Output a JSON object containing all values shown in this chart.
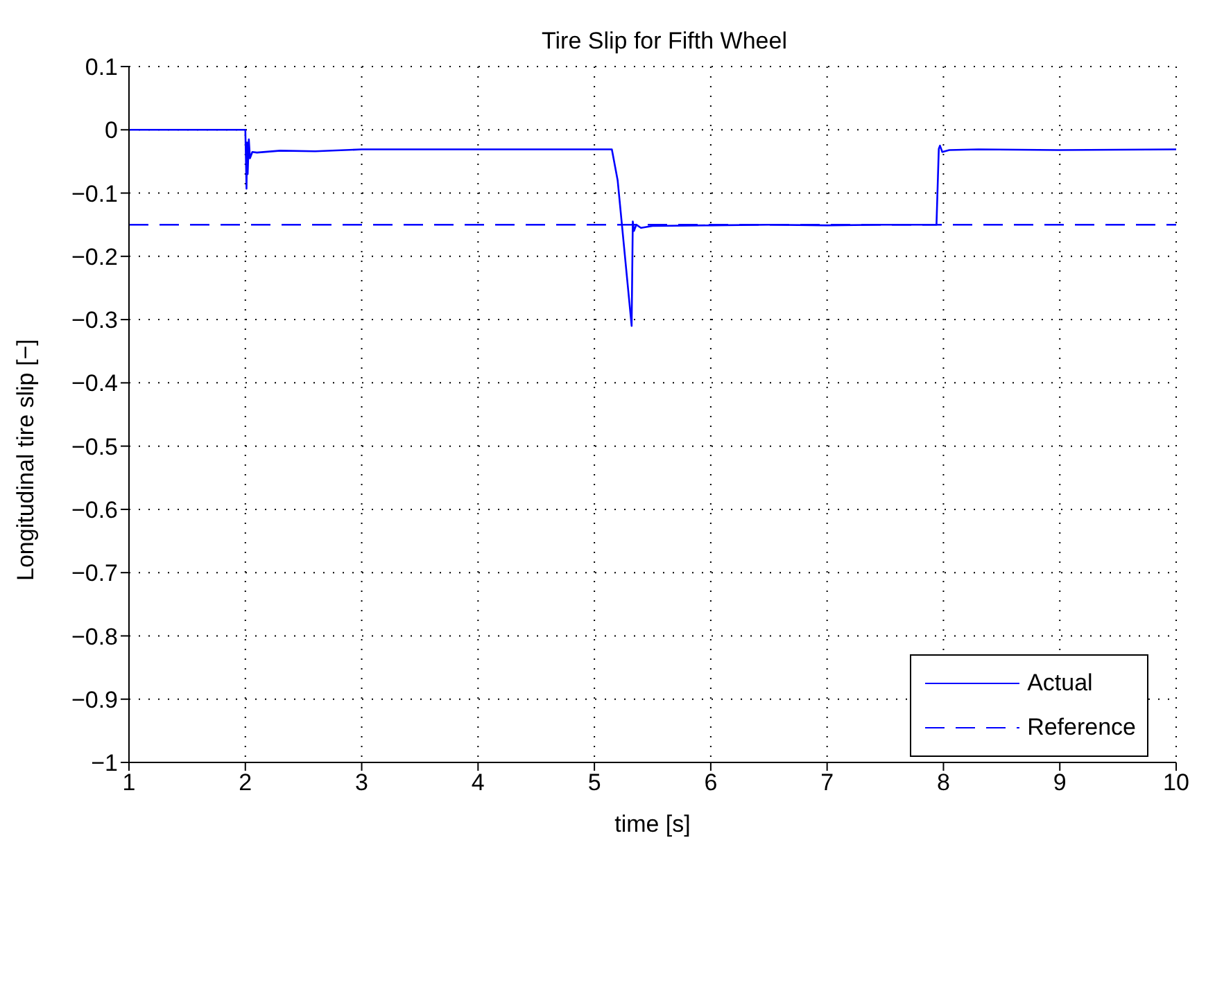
{
  "chart_data": {
    "type": "line",
    "title": "Tire Slip for Fifth Wheel",
    "xlabel": "time [s]",
    "ylabel": "Longitudinal tire slip [−]",
    "series": [
      {
        "name": "Actual",
        "color": "#0000ff",
        "line_style": "solid",
        "x": [
          1,
          2,
          2.01,
          2.015,
          2.02,
          2.03,
          2.04,
          2.06,
          2.1,
          2.3,
          2.6,
          3,
          4,
          5.15,
          5.2,
          5.32,
          5.33,
          5.34,
          5.36,
          5.4,
          5.5,
          6,
          6.5,
          7,
          7.5,
          7.94,
          7.96,
          7.97,
          7.99,
          8.05,
          8.3,
          9,
          10
        ],
        "values": [
          0,
          0,
          -0.093,
          -0.02,
          -0.07,
          -0.015,
          -0.045,
          -0.035,
          -0.036,
          -0.033,
          -0.034,
          -0.031,
          -0.031,
          -0.031,
          -0.08,
          -0.31,
          -0.145,
          -0.16,
          -0.15,
          -0.155,
          -0.152,
          -0.151,
          -0.15,
          -0.151,
          -0.15,
          -0.15,
          -0.03,
          -0.025,
          -0.035,
          -0.032,
          -0.031,
          -0.032,
          -0.031
        ]
      },
      {
        "name": "Reference",
        "color": "#0000ff",
        "line_style": "dashed",
        "x": [
          1,
          10
        ],
        "values": [
          -0.15,
          -0.15
        ]
      }
    ],
    "xlim": [
      1,
      10
    ],
    "xticks": [
      1,
      2,
      3,
      4,
      5,
      6,
      7,
      8,
      9,
      10
    ],
    "ylim": [
      -1,
      0.1
    ],
    "yticks": [
      -1,
      -0.9,
      -0.8,
      -0.7,
      -0.6,
      -0.5,
      -0.4,
      -0.3,
      -0.2,
      -0.1,
      0,
      0.1
    ],
    "grid": true,
    "legend": "bottom right",
    "marker": "none"
  }
}
